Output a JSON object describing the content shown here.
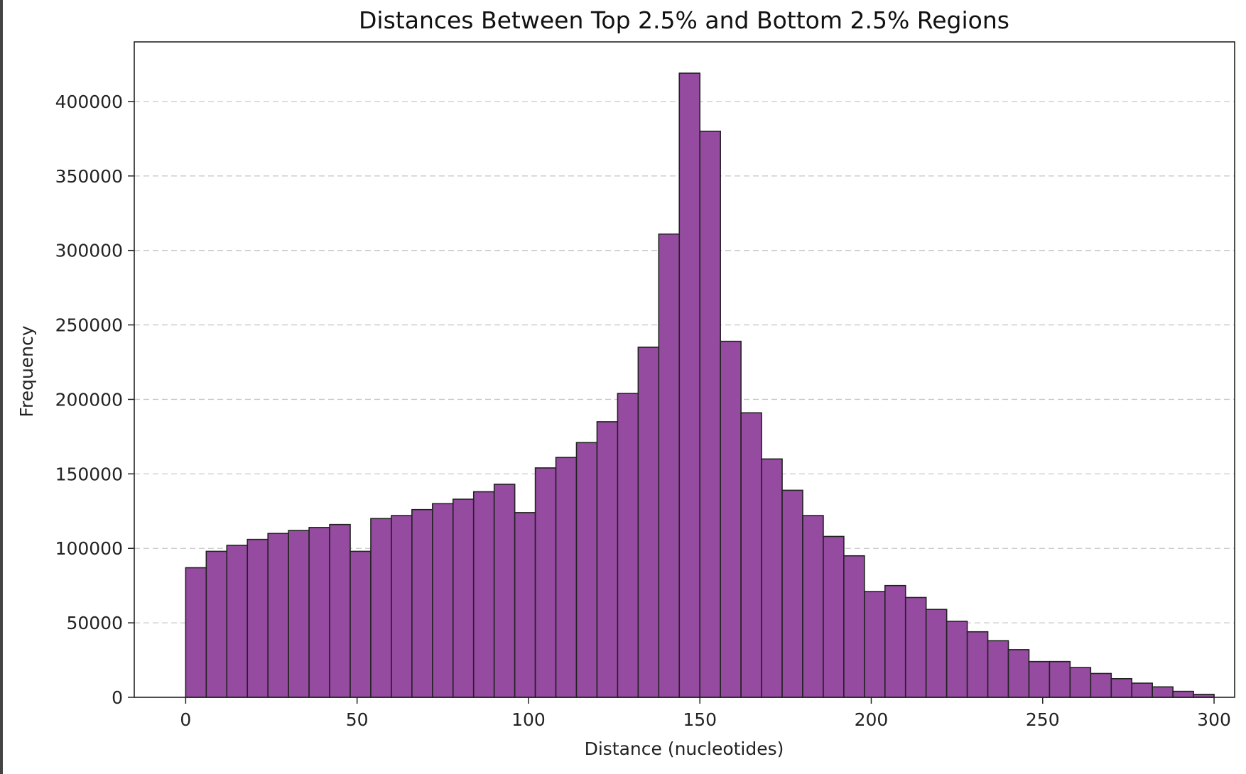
{
  "colors": {
    "bar_fill": "#954ba0",
    "bar_edge": "#222222",
    "grid": "#c8c8c8",
    "left_strip": "#444444"
  },
  "chart_data": {
    "type": "bar",
    "title": "Distances Between Top 2.5% and Bottom 2.5% Regions",
    "xlabel": "Distance (nucleotides)",
    "ylabel": "Frequency",
    "xlim": [
      -15,
      306
    ],
    "ylim": [
      0,
      440000
    ],
    "x_ticks": [
      0,
      50,
      100,
      150,
      200,
      250,
      300
    ],
    "y_ticks": [
      0,
      50000,
      100000,
      150000,
      200000,
      250000,
      300000,
      350000,
      400000
    ],
    "grid": "horizontal dashed",
    "bin_width": 6,
    "bin_edges_start": 0,
    "values": [
      87000,
      98000,
      102000,
      106000,
      110000,
      112000,
      114000,
      116000,
      98000,
      120000,
      122000,
      126000,
      130000,
      133000,
      138000,
      143000,
      124000,
      154000,
      161000,
      171000,
      185000,
      204000,
      235000,
      311000,
      419000,
      380000,
      239000,
      191000,
      160000,
      139000,
      122000,
      108000,
      95000,
      71000,
      75000,
      67000,
      59000,
      51000,
      44000,
      38000,
      32000,
      24000,
      24000,
      20000,
      16000,
      12500,
      9500,
      7000,
      4000,
      2000
    ]
  }
}
